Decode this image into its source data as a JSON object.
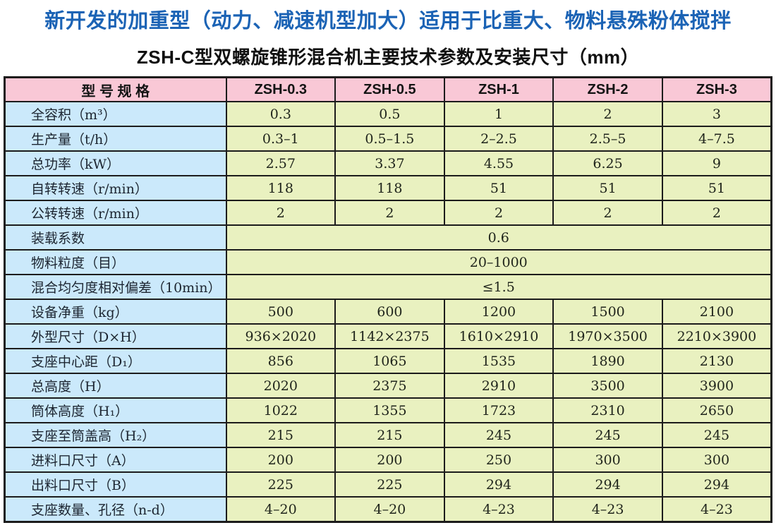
{
  "page": {
    "title": "新开发的加重型（动力、减速机型加大）适用于比重大、物料悬殊粉体搅拌",
    "subtitle": "ZSH-C型双螺旋锥形混合机主要技术参数及安装尺寸（mm）"
  },
  "colors": {
    "title_color": "#1b63b5",
    "header_bg": "#f9c8d6",
    "label_bg": "#cbe9fb",
    "value_bg": "#e9f1c0",
    "border_color": "#1c1c1c"
  },
  "table": {
    "header": [
      "型 号 规 格",
      "ZSH-0.3",
      "ZSH-0.5",
      "ZSH-1",
      "ZSH-2",
      "ZSH-3"
    ],
    "rows": [
      {
        "label": "全容积（m³）",
        "values": [
          "0.3",
          "0.5",
          "1",
          "2",
          "3"
        ]
      },
      {
        "label": "生产量（t/h）",
        "values": [
          "0.3–1",
          "0.5–1.5",
          "2–2.5",
          "2.5–5",
          "4–7.5"
        ]
      },
      {
        "label": "总功率（kW）",
        "values": [
          "2.57",
          "3.37",
          "4.55",
          "6.25",
          "9"
        ]
      },
      {
        "label": "自转转速（r/min）",
        "values": [
          "118",
          "118",
          "51",
          "51",
          "51"
        ]
      },
      {
        "label": "公转转速（r/min）",
        "values": [
          "2",
          "2",
          "2",
          "2",
          "2"
        ]
      },
      {
        "label": "装载系数",
        "merged_value": "0.6"
      },
      {
        "label": "物料粒度（目）",
        "merged_value": "20–1000"
      },
      {
        "label": "混合均匀度相对偏差（10min）",
        "merged_value": "≤1.5"
      },
      {
        "label": "设备净重（kg）",
        "values": [
          "500",
          "600",
          "1200",
          "1500",
          "2100"
        ]
      },
      {
        "label": "外型尺寸（D×H）",
        "values": [
          "936×2020",
          "1142×2375",
          "1610×2910",
          "1970×3500",
          "2210×3900"
        ]
      },
      {
        "label": "支座中心距（D₁）",
        "values": [
          "856",
          "1065",
          "1535",
          "1890",
          "2130"
        ]
      },
      {
        "label": "总高度（H）",
        "values": [
          "2020",
          "2375",
          "2910",
          "3500",
          "3900"
        ]
      },
      {
        "label": "筒体高度（H₁）",
        "values": [
          "1022",
          "1355",
          "1723",
          "2310",
          "2650"
        ]
      },
      {
        "label": "支座至筒盖高（H₂）",
        "values": [
          "215",
          "215",
          "245",
          "245",
          "245"
        ]
      },
      {
        "label": "进料口尺寸（A）",
        "values": [
          "200",
          "200",
          "250",
          "300",
          "300"
        ]
      },
      {
        "label": "出料口尺寸（B）",
        "values": [
          "225",
          "225",
          "294",
          "294",
          "294"
        ]
      },
      {
        "label": "支座数量、孔径（n-d）",
        "values": [
          "4–20",
          "4–20",
          "4–23",
          "4–23",
          "4–23"
        ]
      }
    ]
  }
}
